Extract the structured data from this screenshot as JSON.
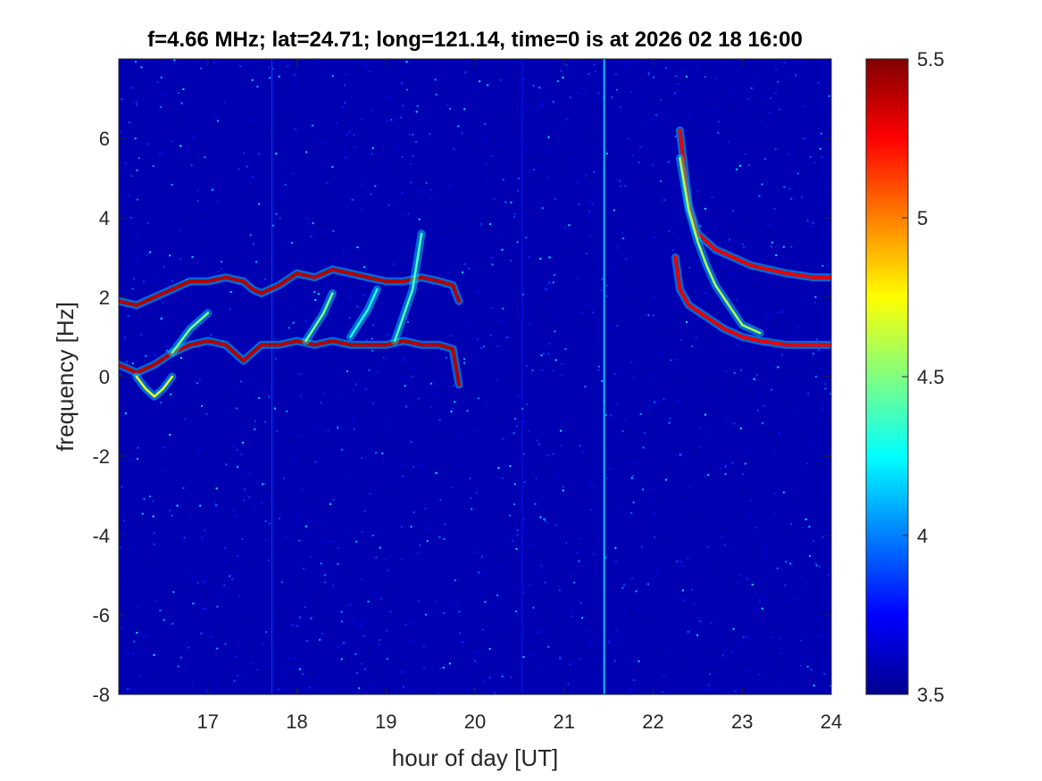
{
  "chart_data": {
    "type": "heatmap",
    "title": "f=4.66 MHz;  lat=24.71; long=121.14, time=0 is at 2026 02 18 16:00",
    "xlabel": "hour of day [UT]",
    "ylabel": "frequency [Hz]",
    "xlim": [
      16,
      24
    ],
    "ylim": [
      -8,
      8
    ],
    "x_ticks": [
      17,
      18,
      19,
      20,
      21,
      22,
      23,
      24
    ],
    "x_tick_labels": [
      "17",
      "18",
      "19",
      "20",
      "21",
      "22",
      "23",
      "24"
    ],
    "y_ticks": [
      -8,
      -6,
      -4,
      -2,
      0,
      2,
      4,
      6
    ],
    "y_tick_labels": [
      "-8",
      "-6",
      "-4",
      "-2",
      "0",
      "2",
      "4",
      "6"
    ],
    "colorbar": {
      "colormap": "jet",
      "clim": [
        3.5,
        5.5
      ],
      "ticks": [
        3.5,
        4,
        4.5,
        5,
        5.5
      ],
      "tick_labels": [
        "3.5",
        "4",
        "4.5",
        "5",
        "5.5"
      ]
    },
    "background_level": 3.6,
    "vertical_lines": [
      {
        "x": 17.72,
        "level": 3.9
      },
      {
        "x": 20.53,
        "level": 3.8
      },
      {
        "x": 21.45,
        "level": 4.2
      }
    ],
    "traces": [
      {
        "level": 5.4,
        "points": [
          [
            16.0,
            1.9
          ],
          [
            16.2,
            1.8
          ],
          [
            16.4,
            2.0
          ],
          [
            16.6,
            2.2
          ],
          [
            16.8,
            2.4
          ],
          [
            17.0,
            2.4
          ],
          [
            17.2,
            2.5
          ],
          [
            17.4,
            2.4
          ],
          [
            17.5,
            2.2
          ],
          [
            17.6,
            2.1
          ],
          [
            17.8,
            2.3
          ],
          [
            18.0,
            2.6
          ],
          [
            18.2,
            2.5
          ],
          [
            18.4,
            2.7
          ],
          [
            18.6,
            2.6
          ],
          [
            18.8,
            2.5
          ],
          [
            19.0,
            2.4
          ],
          [
            19.2,
            2.4
          ],
          [
            19.4,
            2.5
          ],
          [
            19.6,
            2.4
          ],
          [
            19.75,
            2.3
          ],
          [
            19.82,
            1.9
          ]
        ]
      },
      {
        "level": 5.4,
        "points": [
          [
            16.0,
            0.3
          ],
          [
            16.2,
            0.1
          ],
          [
            16.4,
            0.3
          ],
          [
            16.6,
            0.6
          ],
          [
            16.8,
            0.8
          ],
          [
            17.0,
            0.9
          ],
          [
            17.2,
            0.8
          ],
          [
            17.3,
            0.6
          ],
          [
            17.4,
            0.4
          ],
          [
            17.5,
            0.6
          ],
          [
            17.6,
            0.8
          ],
          [
            17.8,
            0.8
          ],
          [
            18.0,
            0.9
          ],
          [
            18.2,
            0.8
          ],
          [
            18.4,
            0.9
          ],
          [
            18.6,
            0.8
          ],
          [
            18.8,
            0.8
          ],
          [
            19.0,
            0.8
          ],
          [
            19.2,
            0.9
          ],
          [
            19.4,
            0.8
          ],
          [
            19.6,
            0.8
          ],
          [
            19.75,
            0.7
          ],
          [
            19.82,
            -0.2
          ]
        ]
      },
      {
        "level": 5.3,
        "points": [
          [
            22.3,
            6.2
          ],
          [
            22.4,
            4.3
          ],
          [
            22.5,
            3.6
          ],
          [
            22.7,
            3.2
          ],
          [
            22.9,
            3.0
          ],
          [
            23.1,
            2.8
          ],
          [
            23.3,
            2.7
          ],
          [
            23.5,
            2.6
          ],
          [
            23.8,
            2.5
          ],
          [
            24.0,
            2.5
          ]
        ]
      },
      {
        "level": 5.3,
        "points": [
          [
            22.25,
            3.0
          ],
          [
            22.3,
            2.2
          ],
          [
            22.4,
            1.8
          ],
          [
            22.6,
            1.5
          ],
          [
            22.8,
            1.2
          ],
          [
            23.0,
            1.0
          ],
          [
            23.2,
            0.9
          ],
          [
            23.5,
            0.8
          ],
          [
            23.8,
            0.8
          ],
          [
            24.0,
            0.8
          ]
        ]
      },
      {
        "level": 4.6,
        "points": [
          [
            22.3,
            5.5
          ],
          [
            22.4,
            4.2
          ],
          [
            22.5,
            3.4
          ],
          [
            22.6,
            2.8
          ],
          [
            22.7,
            2.3
          ],
          [
            22.85,
            1.8
          ],
          [
            23.0,
            1.3
          ],
          [
            23.2,
            1.1
          ]
        ]
      },
      {
        "level": 4.7,
        "points": [
          [
            16.2,
            0.0
          ],
          [
            16.3,
            -0.3
          ],
          [
            16.4,
            -0.5
          ],
          [
            16.5,
            -0.3
          ],
          [
            16.6,
            0.0
          ]
        ]
      },
      {
        "level": 4.5,
        "points": [
          [
            16.6,
            0.6
          ],
          [
            16.8,
            1.2
          ],
          [
            17.0,
            1.6
          ]
        ]
      },
      {
        "level": 4.5,
        "points": [
          [
            18.1,
            0.9
          ],
          [
            18.3,
            1.6
          ],
          [
            18.4,
            2.1
          ]
        ]
      },
      {
        "level": 4.4,
        "points": [
          [
            19.1,
            0.9
          ],
          [
            19.3,
            2.2
          ],
          [
            19.4,
            3.6
          ]
        ]
      },
      {
        "level": 4.3,
        "points": [
          [
            18.6,
            1.0
          ],
          [
            18.8,
            1.7
          ],
          [
            18.9,
            2.2
          ]
        ]
      }
    ]
  }
}
